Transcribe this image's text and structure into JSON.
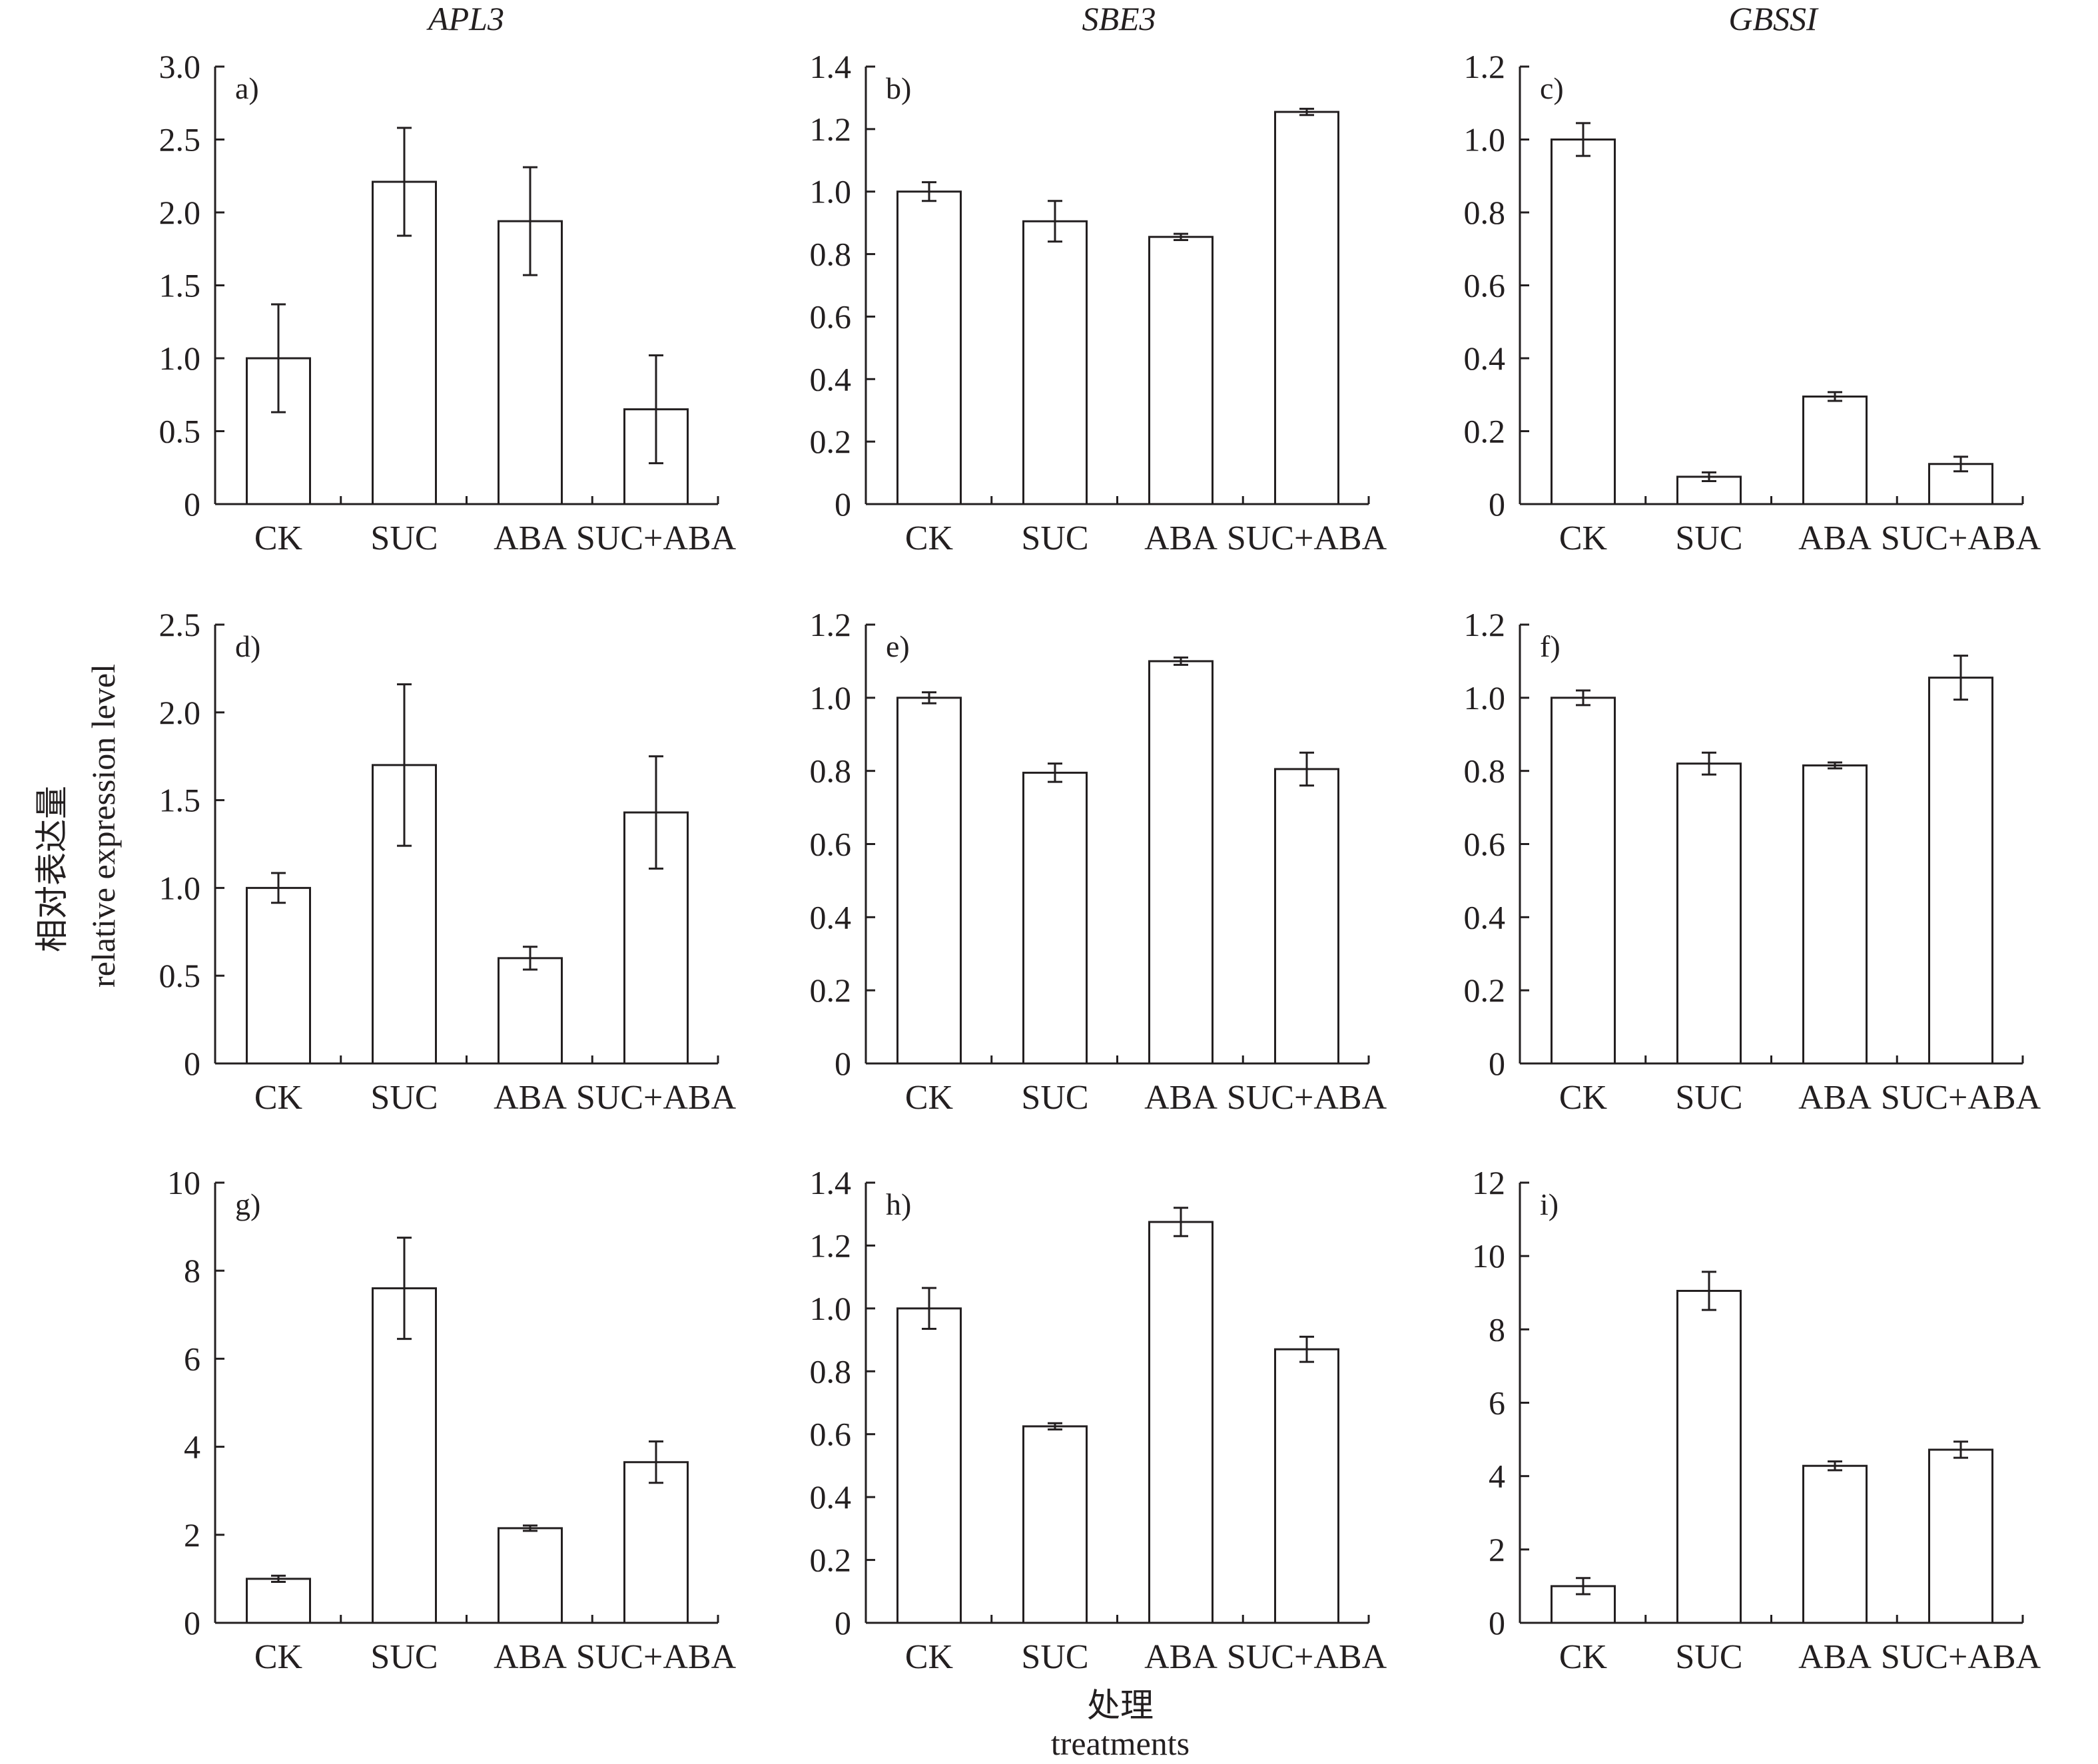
{
  "figure": {
    "column_titles": [
      "APL3",
      "SBE3",
      "GBSSI"
    ],
    "y_axis_label_zh": "相对表达量",
    "y_axis_label_en": "relative expression level",
    "x_axis_label_zh": "处理",
    "x_axis_label_en": "treatments",
    "bar_fill": "#ffffff",
    "line_color": "#231f20"
  },
  "chart_data": [
    {
      "panel": "a)",
      "gene": "APL3",
      "type": "bar",
      "categories": [
        "CK",
        "SUC",
        "ABA",
        "SUC+ABA"
      ],
      "values": [
        1.0,
        2.21,
        1.94,
        0.65
      ],
      "errors": [
        0.37,
        0.37,
        0.37,
        0.37
      ],
      "ylim": [
        0,
        3.0
      ],
      "yticks": [
        "0",
        "0.5",
        "1.0",
        "1.5",
        "2.0",
        "2.5",
        "3.0"
      ]
    },
    {
      "panel": "b)",
      "gene": "SBE3",
      "type": "bar",
      "categories": [
        "CK",
        "SUC",
        "ABA",
        "SUC+ABA"
      ],
      "values": [
        1.0,
        0.905,
        0.855,
        1.255
      ],
      "errors": [
        0.03,
        0.065,
        0.01,
        0.01
      ],
      "ylim": [
        0,
        1.4
      ],
      "yticks": [
        "0",
        "0.2",
        "0.4",
        "0.6",
        "0.8",
        "1.0",
        "1.2",
        "1.4"
      ]
    },
    {
      "panel": "c)",
      "gene": "GBSSI",
      "type": "bar",
      "categories": [
        "CK",
        "SUC",
        "ABA",
        "SUC+ABA"
      ],
      "values": [
        1.0,
        0.075,
        0.295,
        0.11
      ],
      "errors": [
        0.045,
        0.012,
        0.012,
        0.02
      ],
      "ylim": [
        0,
        1.2
      ],
      "yticks": [
        "0",
        "0.2",
        "0.4",
        "0.6",
        "0.8",
        "1.0",
        "1.2"
      ]
    },
    {
      "panel": "d)",
      "gene": "APL3",
      "type": "bar",
      "categories": [
        "CK",
        "SUC",
        "ABA",
        "SUC+ABA"
      ],
      "values": [
        1.0,
        1.7,
        0.6,
        1.43
      ],
      "errors": [
        0.085,
        0.46,
        0.065,
        0.32
      ],
      "ylim": [
        0,
        2.5
      ],
      "yticks": [
        "0",
        "0.5",
        "1.0",
        "1.5",
        "2.0",
        "2.5"
      ]
    },
    {
      "panel": "e)",
      "gene": "SBE3",
      "type": "bar",
      "categories": [
        "CK",
        "SUC",
        "ABA",
        "SUC+ABA"
      ],
      "values": [
        1.0,
        0.795,
        1.1,
        0.805
      ],
      "errors": [
        0.015,
        0.025,
        0.01,
        0.045
      ],
      "ylim": [
        0,
        1.2
      ],
      "yticks": [
        "0",
        "0.2",
        "0.4",
        "0.6",
        "0.8",
        "1.0",
        "1.2"
      ]
    },
    {
      "panel": "f)",
      "gene": "GBSSI",
      "type": "bar",
      "categories": [
        "CK",
        "SUC",
        "ABA",
        "SUC+ABA"
      ],
      "values": [
        1.0,
        0.82,
        0.815,
        1.055
      ],
      "errors": [
        0.02,
        0.03,
        0.008,
        0.06
      ],
      "ylim": [
        0,
        1.2
      ],
      "yticks": [
        "0",
        "0.2",
        "0.4",
        "0.6",
        "0.8",
        "1.0",
        "1.2"
      ]
    },
    {
      "panel": "g)",
      "gene": "APL3",
      "type": "bar",
      "categories": [
        "CK",
        "SUC",
        "ABA",
        "SUC+ABA"
      ],
      "values": [
        1.0,
        7.6,
        2.15,
        3.65
      ],
      "errors": [
        0.07,
        1.15,
        0.06,
        0.47
      ],
      "ylim": [
        0,
        10
      ],
      "yticks": [
        "0",
        "2",
        "4",
        "6",
        "8",
        "10"
      ]
    },
    {
      "panel": "h)",
      "gene": "SBE3",
      "type": "bar",
      "categories": [
        "CK",
        "SUC",
        "ABA",
        "SUC+ABA"
      ],
      "values": [
        1.0,
        0.625,
        1.275,
        0.87
      ],
      "errors": [
        0.065,
        0.01,
        0.045,
        0.04
      ],
      "ylim": [
        0,
        1.4
      ],
      "yticks": [
        "0",
        "0.2",
        "0.4",
        "0.6",
        "0.8",
        "1.0",
        "1.2",
        "1.4"
      ]
    },
    {
      "panel": "i)",
      "gene": "GBSSI",
      "type": "bar",
      "categories": [
        "CK",
        "SUC",
        "ABA",
        "SUC+ABA"
      ],
      "values": [
        1.0,
        9.05,
        4.28,
        4.72
      ],
      "errors": [
        0.22,
        0.52,
        0.12,
        0.22
      ],
      "ylim": [
        0,
        12
      ],
      "yticks": [
        "0",
        "2",
        "4",
        "6",
        "8",
        "10",
        "12"
      ]
    }
  ]
}
